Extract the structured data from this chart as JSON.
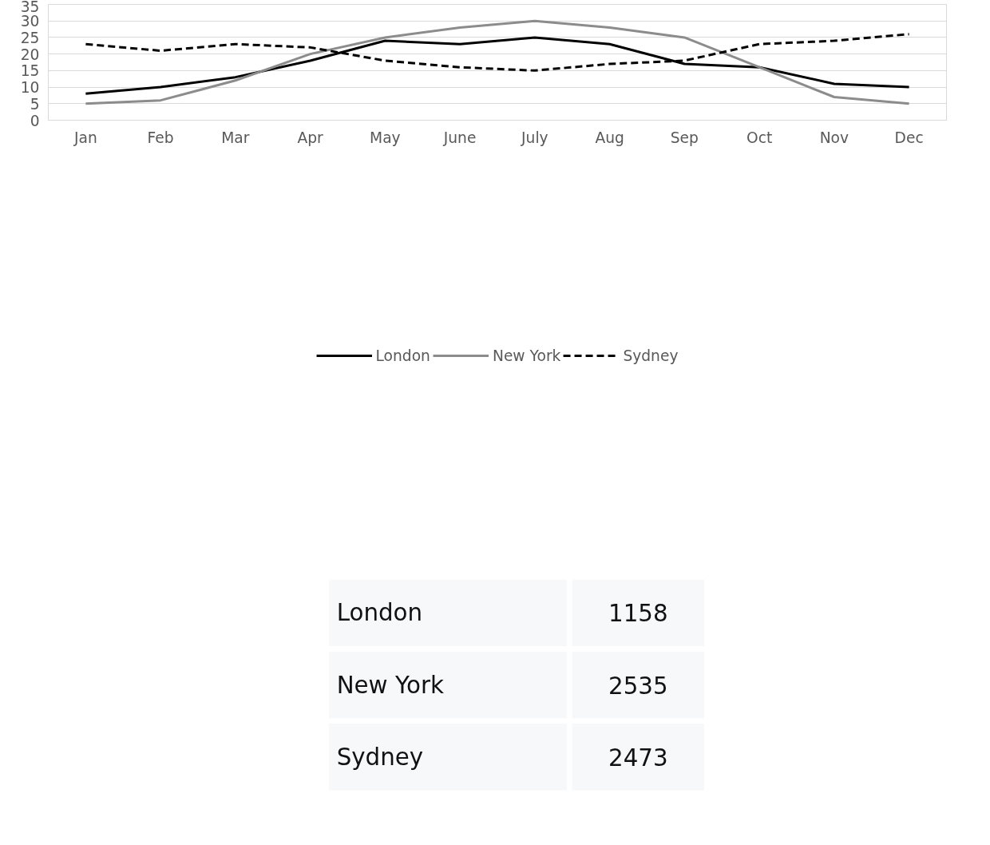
{
  "chart_data": {
    "type": "line",
    "categories": [
      "Jan",
      "Feb",
      "Mar",
      "Apr",
      "May",
      "June",
      "July",
      "Aug",
      "Sep",
      "Oct",
      "Nov",
      "Dec"
    ],
    "series": [
      {
        "name": "London",
        "color": "#000000",
        "line_style": "solid",
        "values": [
          8,
          10,
          13,
          18,
          24,
          23,
          25,
          23,
          17,
          16,
          11,
          10
        ]
      },
      {
        "name": "New York",
        "color": "#8c8c8c",
        "line_style": "solid",
        "values": [
          5,
          6,
          12,
          20,
          25,
          28,
          30,
          28,
          25,
          16,
          7,
          5
        ]
      },
      {
        "name": "Sydney",
        "color": "#000000",
        "line_style": "dashed",
        "values": [
          23,
          21,
          23,
          22,
          18,
          16,
          15,
          17,
          18,
          23,
          24,
          26
        ]
      }
    ],
    "ylim": [
      0,
      35
    ],
    "yticks": [
      0,
      5,
      10,
      15,
      20,
      25,
      30,
      35
    ],
    "grid": "y",
    "legend": "bottom",
    "marker": "none",
    "annotations": [
      "London",
      "1158",
      "New York",
      "2535",
      "Sydney",
      "2473"
    ]
  }
}
